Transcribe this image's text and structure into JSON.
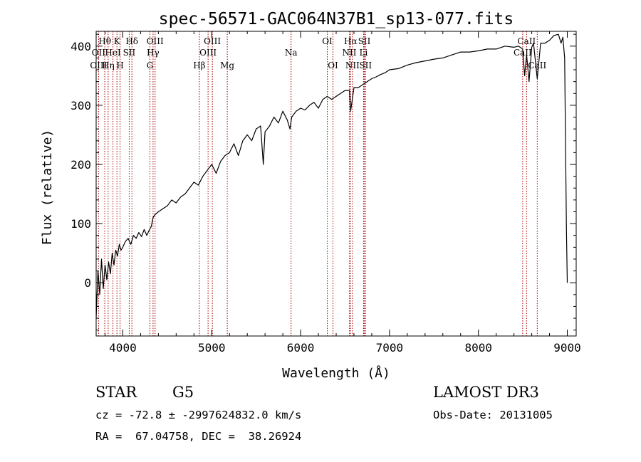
{
  "chart_data": {
    "type": "line",
    "title": "spec-56571-GAC064N37B1_sp13-077.fits",
    "xlabel": "Wavelength (Å)",
    "ylabel": "Flux (relative)",
    "xlim": [
      3700,
      9100
    ],
    "ylim": [
      -90,
      425
    ],
    "xticks": [
      4000,
      5000,
      6000,
      7000,
      8000,
      9000
    ],
    "yticks": [
      0,
      100,
      200,
      300,
      400
    ],
    "grid": false,
    "line_color": "#000000",
    "marker_color": "#aa0000",
    "series": [
      {
        "x": [
          3700,
          3720,
          3740,
          3760,
          3780,
          3800,
          3820,
          3840,
          3860,
          3880,
          3900,
          3920,
          3940,
          3960,
          3980,
          4000,
          4030,
          4060,
          4090,
          4120,
          4150,
          4180,
          4210,
          4240,
          4270,
          4300,
          4320,
          4340,
          4360,
          4400,
          4450,
          4500,
          4550,
          4600,
          4650,
          4700,
          4750,
          4800,
          4850,
          4900,
          4950,
          5000,
          5050,
          5100,
          5150,
          5200,
          5250,
          5300,
          5350,
          5400,
          5450,
          5500,
          5550,
          5580,
          5600,
          5650,
          5700,
          5750,
          5800,
          5850,
          5880,
          5900,
          5950,
          6000,
          6050,
          6100,
          6150,
          6200,
          6250,
          6300,
          6350,
          6400,
          6450,
          6500,
          6550,
          6563,
          6600,
          6650,
          6700,
          6750,
          6800,
          6850,
          6900,
          6950,
          7000,
          7100,
          7200,
          7300,
          7400,
          7500,
          7600,
          7700,
          7800,
          7900,
          8000,
          8100,
          8200,
          8300,
          8400,
          8450,
          8498,
          8520,
          8542,
          8570,
          8600,
          8620,
          8662,
          8700,
          8750,
          8800,
          8850,
          8900,
          8930,
          8950,
          8970,
          8990,
          9000
        ],
        "y": [
          -60,
          20,
          -20,
          40,
          -10,
          30,
          5,
          35,
          15,
          50,
          30,
          55,
          45,
          65,
          55,
          60,
          70,
          75,
          65,
          80,
          75,
          85,
          78,
          90,
          80,
          90,
          95,
          110,
          115,
          120,
          125,
          130,
          140,
          135,
          145,
          150,
          160,
          170,
          165,
          180,
          190,
          200,
          185,
          205,
          215,
          220,
          235,
          215,
          240,
          250,
          240,
          260,
          265,
          200,
          255,
          265,
          280,
          270,
          290,
          275,
          260,
          280,
          290,
          295,
          292,
          300,
          305,
          295,
          310,
          315,
          310,
          315,
          320,
          325,
          325,
          290,
          330,
          330,
          335,
          340,
          345,
          348,
          352,
          355,
          360,
          362,
          368,
          372,
          375,
          378,
          380,
          385,
          390,
          390,
          392,
          395,
          395,
          400,
          398,
          400,
          395,
          350,
          385,
          340,
          398,
          405,
          345,
          405,
          405,
          410,
          418,
          420,
          405,
          415,
          380,
          90,
          0
        ]
      }
    ],
    "annotations": [
      {
        "label": "Hθ",
        "x": 3797,
        "row": 1
      },
      {
        "label": "K",
        "x": 3934,
        "row": 1
      },
      {
        "label": "Hδ",
        "x": 4102,
        "row": 1
      },
      {
        "label": "OIII",
        "x": 4363,
        "row": 1
      },
      {
        "label": "OIII",
        "x": 5007,
        "row": 1
      },
      {
        "label": "OI",
        "x": 6300,
        "row": 1
      },
      {
        "label": "Hα",
        "x": 6563,
        "row": 1
      },
      {
        "label": "SII",
        "x": 6717,
        "row": 1
      },
      {
        "label": "CaII",
        "x": 8542,
        "row": 1
      },
      {
        "label": "OII",
        "x": 3727,
        "row": 2
      },
      {
        "label": "HeI",
        "x": 3889,
        "row": 2
      },
      {
        "label": "SII",
        "x": 4072,
        "row": 2
      },
      {
        "label": "Hγ",
        "x": 4340,
        "row": 2
      },
      {
        "label": "OIII",
        "x": 4959,
        "row": 2
      },
      {
        "label": "Na",
        "x": 5893,
        "row": 2
      },
      {
        "label": "NII",
        "x": 6548,
        "row": 2
      },
      {
        "label": "Li",
        "x": 6708,
        "row": 2
      },
      {
        "label": "CaII",
        "x": 8498,
        "row": 2
      },
      {
        "label": "OIII",
        "x": 3727,
        "row": 3
      },
      {
        "label": "Hη",
        "x": 3835,
        "row": 3
      },
      {
        "label": "H",
        "x": 3969,
        "row": 3
      },
      {
        "label": "G",
        "x": 4305,
        "row": 3
      },
      {
        "label": "Hβ",
        "x": 4861,
        "row": 3
      },
      {
        "label": "Mg",
        "x": 5175,
        "row": 3
      },
      {
        "label": "OI",
        "x": 6364,
        "row": 3
      },
      {
        "label": "NII",
        "x": 6583,
        "row": 3
      },
      {
        "label": "SII",
        "x": 6731,
        "row": 3
      },
      {
        "label": "CaII",
        "x": 8662,
        "row": 3
      }
    ]
  },
  "info": {
    "object_class": "STAR",
    "subclass": "G5",
    "survey": "LAMOST DR3",
    "redshift": "cz = -72.8 ± -2997624832.0 km/s",
    "obs_date": "Obs-Date: 20131005",
    "coords": "RA =  67.04758, DEC =  38.26924"
  }
}
